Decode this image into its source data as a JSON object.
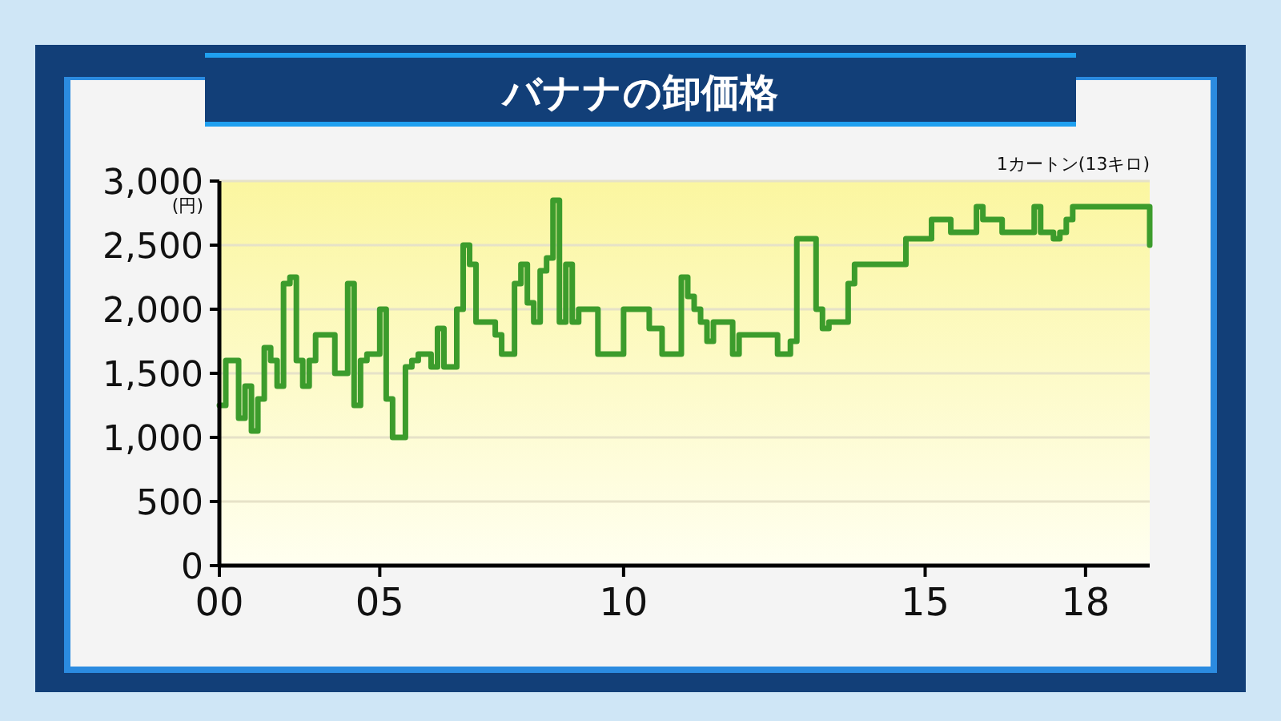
{
  "chart_data": {
    "type": "step",
    "title": "バナナの卸価格",
    "ylabel": "(円)",
    "annotations": [
      "1カートン(13キロ)"
    ],
    "categories": [
      "00",
      null,
      null,
      null,
      null,
      null,
      null,
      null,
      null,
      null,
      null,
      null,
      null,
      null,
      null,
      null,
      null,
      null,
      null,
      null,
      null,
      null,
      null,
      null,
      null,
      "05",
      null,
      null,
      null,
      null,
      null,
      null,
      null,
      null,
      null,
      null,
      null,
      null,
      null,
      null,
      null,
      null,
      null,
      null,
      null,
      null,
      null,
      null,
      null,
      null,
      null,
      null,
      null,
      null,
      null,
      null,
      null,
      null,
      null,
      null,
      null,
      null,
      null,
      "10",
      null,
      null,
      null,
      null,
      null,
      null,
      null,
      null,
      null,
      null,
      null,
      null,
      null,
      null,
      null,
      null,
      null,
      null,
      null,
      null,
      null,
      null,
      null,
      null,
      null,
      null,
      null,
      null,
      null,
      null,
      null,
      null,
      null,
      null,
      null,
      null,
      null,
      null,
      null,
      null,
      null,
      null,
      null,
      null,
      null,
      null,
      "15",
      null,
      null,
      null,
      null,
      null,
      null,
      null,
      null,
      null,
      null,
      null,
      null,
      null,
      null,
      null,
      null,
      null,
      null,
      null,
      null,
      null,
      null,
      null,
      null,
      "18",
      null,
      null,
      null,
      null,
      null,
      null,
      null,
      null,
      null,
      null
    ],
    "series": [
      {
        "color": "#3c9c2c",
        "values": [
          1250,
          1600,
          1600,
          1150,
          1400,
          1050,
          1300,
          1700,
          1600,
          1400,
          2200,
          2250,
          1600,
          1400,
          1600,
          1800,
          1800,
          1800,
          1500,
          1500,
          2200,
          1250,
          1600,
          1650,
          1650,
          2000,
          1300,
          1000,
          1000,
          1550,
          1600,
          1650,
          1650,
          1550,
          1850,
          1550,
          1550,
          2000,
          2500,
          2350,
          1900,
          1900,
          1900,
          1800,
          1650,
          1650,
          2200,
          2350,
          2050,
          1900,
          2300,
          2400,
          2850,
          1900,
          2350,
          1900,
          2000,
          2000,
          2000,
          1650,
          1650,
          1650,
          1650,
          2000,
          2000,
          2000,
          2000,
          1850,
          1850,
          1650,
          1650,
          1650,
          2250,
          2100,
          2000,
          1900,
          1750,
          1900,
          1900,
          1900,
          1650,
          1800,
          1800,
          1800,
          1800,
          1800,
          1800,
          1650,
          1650,
          1750,
          2550,
          2550,
          2550,
          2000,
          1850,
          1900,
          1900,
          1900,
          2200,
          2350,
          2350,
          2350,
          2350,
          2350,
          2350,
          2350,
          2350,
          2550,
          2550,
          2550,
          2550,
          2700,
          2700,
          2700,
          2600,
          2600,
          2600,
          2600,
          2800,
          2700,
          2700,
          2700,
          2600,
          2600,
          2600,
          2600,
          2600,
          2800,
          2600,
          2600,
          2550,
          2600,
          2700,
          2800,
          2800,
          2800,
          2800,
          2800,
          2800,
          2800,
          2800,
          2800,
          2800,
          2800,
          2800,
          2500
        ]
      }
    ],
    "ylim": [
      0,
      3000
    ],
    "yticks": [
      {
        "value": 0,
        "label": "0"
      },
      {
        "value": 500,
        "label": "500"
      },
      {
        "value": 1000,
        "label": "1,000"
      },
      {
        "value": 1500,
        "label": "1,500"
      },
      {
        "value": 2000,
        "label": "2,000"
      },
      {
        "value": 2500,
        "label": "2,500"
      },
      {
        "value": 3000,
        "label": "3,000"
      }
    ],
    "grid": "y"
  }
}
